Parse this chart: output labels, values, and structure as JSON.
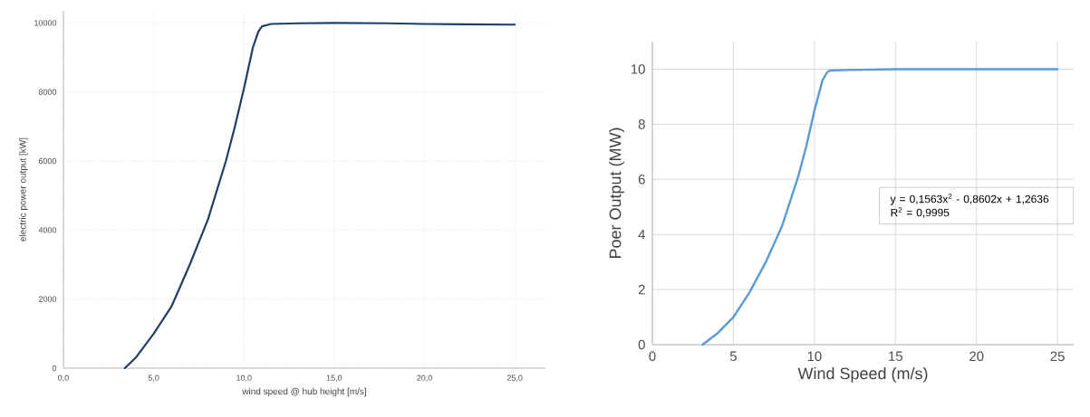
{
  "chart_data": [
    {
      "type": "line",
      "xlabel": "wind speed @ hub height [m/s]",
      "ylabel": "electric power output [kW]",
      "xlim": [
        0,
        26.7
      ],
      "ylim": [
        0,
        10350
      ],
      "xticks": [
        {
          "value": 0,
          "label": "0,0"
        },
        {
          "value": 5,
          "label": "5,0"
        },
        {
          "value": 10,
          "label": "10,0"
        },
        {
          "value": 15,
          "label": "15,0"
        },
        {
          "value": 20,
          "label": "20,0"
        },
        {
          "value": 25,
          "label": "25,0"
        }
      ],
      "yticks": [
        0,
        2000,
        4000,
        6000,
        8000,
        10000
      ],
      "grid": true,
      "series": [
        {
          "color": "#1f3f66",
          "x": [
            3.4,
            4,
            5,
            6,
            7,
            8,
            9,
            9.5,
            10,
            10.5,
            10.8,
            11,
            11.5,
            13,
            15,
            18,
            20,
            25
          ],
          "values": [
            0,
            300,
            1000,
            1800,
            3000,
            4300,
            6000,
            7000,
            8100,
            9300,
            9750,
            9900,
            9970,
            9990,
            10000,
            9990,
            9970,
            9950
          ]
        }
      ]
    },
    {
      "type": "line",
      "xlabel": "Wind Speed (m/s)",
      "ylabel": "Poer Output (MW)",
      "xlim": [
        0,
        26
      ],
      "ylim": [
        0,
        11
      ],
      "xticks": [
        0,
        5,
        10,
        15,
        20,
        25
      ],
      "yticks": [
        0,
        2,
        4,
        6,
        8,
        10
      ],
      "grid": true,
      "annotations": [
        "y = 0,1563x$^{2}$ - 0,8602x + 1,2636",
        "R$^{2}$ = 0,9995"
      ],
      "series": [
        {
          "color": "#5b9bd5",
          "x": [
            3.1,
            4,
            5,
            6,
            7,
            8,
            9,
            9.5,
            10,
            10.5,
            10.8,
            11,
            12,
            15,
            20,
            25
          ],
          "values": [
            0,
            0.4,
            1,
            1.9,
            3,
            4.3,
            6.1,
            7.2,
            8.5,
            9.6,
            9.9,
            9.95,
            9.97,
            10,
            10,
            10
          ]
        }
      ]
    }
  ]
}
